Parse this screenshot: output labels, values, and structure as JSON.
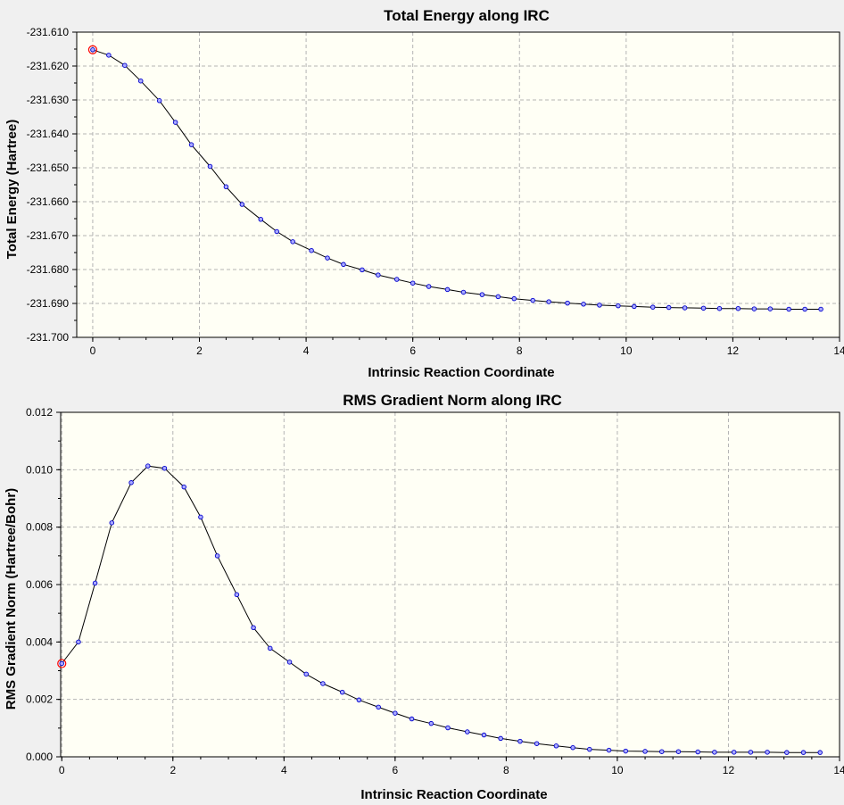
{
  "colors": {
    "window_bg": "#f0f0f0",
    "plot_bg": "#fffff5",
    "grid": "#b4b4b4",
    "line": "#000000",
    "point_fill": "#aaaaff",
    "point_stroke": "#0000cc",
    "highlight": "#ff0000"
  },
  "chart_data": [
    {
      "type": "line",
      "title": "Total Energy along IRC",
      "xlabel": "Intrinsic Reaction Coordinate",
      "ylabel": "Total Energy (Hartree)",
      "xlim": [
        -0.3,
        14
      ],
      "ylim": [
        -231.7,
        -231.61
      ],
      "x_ticks": [
        "0",
        "2",
        "4",
        "6",
        "8",
        "10",
        "12",
        "14"
      ],
      "y_ticks": [
        "-231.610",
        "-231.620",
        "-231.630",
        "-231.640",
        "-231.650",
        "-231.660",
        "-231.670",
        "-231.680",
        "-231.690",
        "-231.700"
      ],
      "grid": true,
      "highlighted_point": 0,
      "series": [
        {
          "x": [
            0,
            0.3,
            0.6,
            0.9,
            1.25,
            1.55,
            1.85,
            2.2,
            2.5,
            2.8,
            3.15,
            3.45,
            3.75,
            4.1,
            4.4,
            4.7,
            5.05,
            5.35,
            5.7,
            6.0,
            6.3,
            6.65,
            6.95,
            7.3,
            7.6,
            7.9,
            8.25,
            8.55,
            8.9,
            9.2,
            9.5,
            9.85,
            10.15,
            10.5,
            10.8,
            11.1,
            11.45,
            11.75,
            12.1,
            12.4,
            12.7,
            13.05,
            13.35,
            13.65
          ],
          "y": [
            -231.6152,
            -231.6168,
            -231.6198,
            -231.6244,
            -231.6302,
            -231.6366,
            -231.6432,
            -231.6496,
            -231.6556,
            -231.6608,
            -231.6652,
            -231.6688,
            -231.6718,
            -231.6744,
            -231.6766,
            -231.6785,
            -231.6801,
            -231.6816,
            -231.6829,
            -231.684,
            -231.685,
            -231.6859,
            -231.6867,
            -231.6874,
            -231.688,
            -231.6886,
            -231.6891,
            -231.6895,
            -231.6899,
            -231.6902,
            -231.6905,
            -231.6907,
            -231.6909,
            -231.6911,
            -231.6912,
            -231.6913,
            -231.6914,
            -231.6915,
            -231.6915,
            -231.6916,
            -231.6916,
            -231.6917,
            -231.6917,
            -231.6917
          ]
        }
      ]
    },
    {
      "type": "line",
      "title": "RMS Gradient Norm along IRC",
      "xlabel": "Intrinsic Reaction Coordinate",
      "ylabel": "RMS Gradient Norm (Hartree/Bohr)",
      "xlim": [
        -0.02,
        14
      ],
      "ylim": [
        0,
        0.012
      ],
      "x_ticks": [
        "0",
        "2",
        "4",
        "6",
        "8",
        "10",
        "12",
        "14"
      ],
      "y_ticks": [
        "0.012",
        "0.010",
        "0.008",
        "0.006",
        "0.004",
        "0.002",
        "0.000"
      ],
      "grid": true,
      "highlighted_point": 0,
      "series": [
        {
          "x": [
            0,
            0.3,
            0.6,
            0.9,
            1.25,
            1.55,
            1.85,
            2.2,
            2.5,
            2.8,
            3.15,
            3.45,
            3.75,
            4.1,
            4.4,
            4.7,
            5.05,
            5.35,
            5.7,
            6.0,
            6.3,
            6.65,
            6.95,
            7.3,
            7.6,
            7.9,
            8.25,
            8.55,
            8.9,
            9.2,
            9.5,
            9.85,
            10.15,
            10.5,
            10.8,
            11.1,
            11.45,
            11.75,
            12.1,
            12.4,
            12.7,
            13.05,
            13.35,
            13.65
          ],
          "y": [
            0.00325,
            0.004,
            0.00605,
            0.00815,
            0.00955,
            0.01013,
            0.01005,
            0.0094,
            0.00835,
            0.007,
            0.00565,
            0.0045,
            0.00378,
            0.0033,
            0.00288,
            0.00255,
            0.00225,
            0.00198,
            0.00173,
            0.00152,
            0.00132,
            0.00116,
            0.00101,
            0.00087,
            0.00076,
            0.00064,
            0.00054,
            0.00046,
            0.00038,
            0.00032,
            0.00026,
            0.00023,
            0.0002,
            0.00019,
            0.00018,
            0.00018,
            0.00017,
            0.00016,
            0.00016,
            0.00016,
            0.00016,
            0.00015,
            0.00015,
            0.00015
          ]
        }
      ]
    }
  ]
}
